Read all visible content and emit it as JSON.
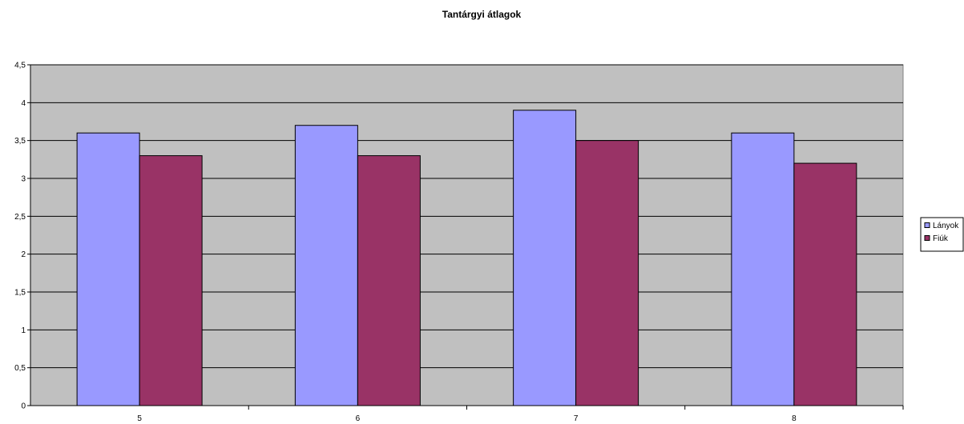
{
  "chart_data": {
    "type": "bar",
    "title": "Tantárgyi átlagok",
    "xlabel": "",
    "ylabel": "",
    "categories": [
      "5",
      "6",
      "7",
      "8"
    ],
    "series": [
      {
        "name": "Lányok",
        "values": [
          3.6,
          3.7,
          3.9,
          3.6
        ],
        "color": "#9999ff"
      },
      {
        "name": "Fiúk",
        "values": [
          3.3,
          3.3,
          3.5,
          3.2
        ],
        "color": "#993366"
      }
    ],
    "ylim": [
      0,
      4.5
    ],
    "yticks": [
      "0",
      "0,5",
      "1",
      "1,5",
      "2",
      "2,5",
      "3",
      "3,5",
      "4",
      "4,5"
    ],
    "grid": true,
    "plot_background": "#c0c0c0",
    "legend_position": "right"
  }
}
